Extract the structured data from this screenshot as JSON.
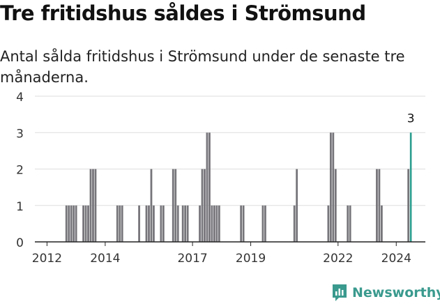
{
  "title": "Tre fritidshus såldes i Strömsund",
  "subtitle": "Antal sålda fritidshus i Strömsund under de senaste tre månaderna.",
  "brand": {
    "name": "Newsworthy",
    "color": "#3a9a8e"
  },
  "colors": {
    "bar": "#76757a",
    "highlight": "#2a9d8f",
    "grid": "#dddddd",
    "axis": "#222222"
  },
  "chart_data": {
    "type": "bar",
    "title": "Tre fritidshus såldes i Strömsund",
    "subtitle": "Antal sålda fritidshus i Strömsund under de senaste tre månaderna.",
    "xlabel": "",
    "ylabel": "",
    "ylim": [
      0,
      4
    ],
    "xlim": [
      "2011-08",
      "2025-01"
    ],
    "yticks": [
      0,
      1,
      2,
      3,
      4
    ],
    "xticks": [
      "2012",
      "2014",
      "2017",
      "2019",
      "2022",
      "2024"
    ],
    "grid": true,
    "legend": "none",
    "unit": "months",
    "highlight": {
      "x": "2024-07",
      "value": 3,
      "label": "3"
    },
    "series": [
      {
        "x": [
          "2012-09",
          "2012-10",
          "2012-11",
          "2012-12",
          "2013-01",
          "2013-04",
          "2013-05",
          "2013-06",
          "2013-07",
          "2013-08",
          "2013-09",
          "2014-06",
          "2014-07",
          "2014-08",
          "2015-03",
          "2015-06",
          "2015-07",
          "2015-08",
          "2015-09",
          "2015-12",
          "2016-01",
          "2016-05",
          "2016-06",
          "2016-07",
          "2016-09",
          "2016-10",
          "2016-11",
          "2017-04",
          "2017-05",
          "2017-06",
          "2017-07",
          "2017-08",
          "2017-09",
          "2017-10",
          "2017-11",
          "2017-12",
          "2018-09",
          "2018-10",
          "2019-06",
          "2019-07",
          "2020-07",
          "2020-08",
          "2021-09",
          "2021-10",
          "2021-11",
          "2021-12",
          "2022-05",
          "2022-06",
          "2023-05",
          "2023-06",
          "2023-07",
          "2024-06",
          "2024-07"
        ],
        "values": [
          1,
          1,
          1,
          1,
          1,
          1,
          1,
          1,
          2,
          2,
          2,
          1,
          1,
          1,
          1,
          1,
          1,
          2,
          1,
          1,
          1,
          2,
          2,
          1,
          1,
          1,
          1,
          1,
          2,
          2,
          3,
          3,
          1,
          1,
          1,
          1,
          1,
          1,
          1,
          1,
          1,
          2,
          1,
          3,
          3,
          2,
          1,
          1,
          2,
          2,
          1,
          2,
          3
        ]
      }
    ]
  }
}
